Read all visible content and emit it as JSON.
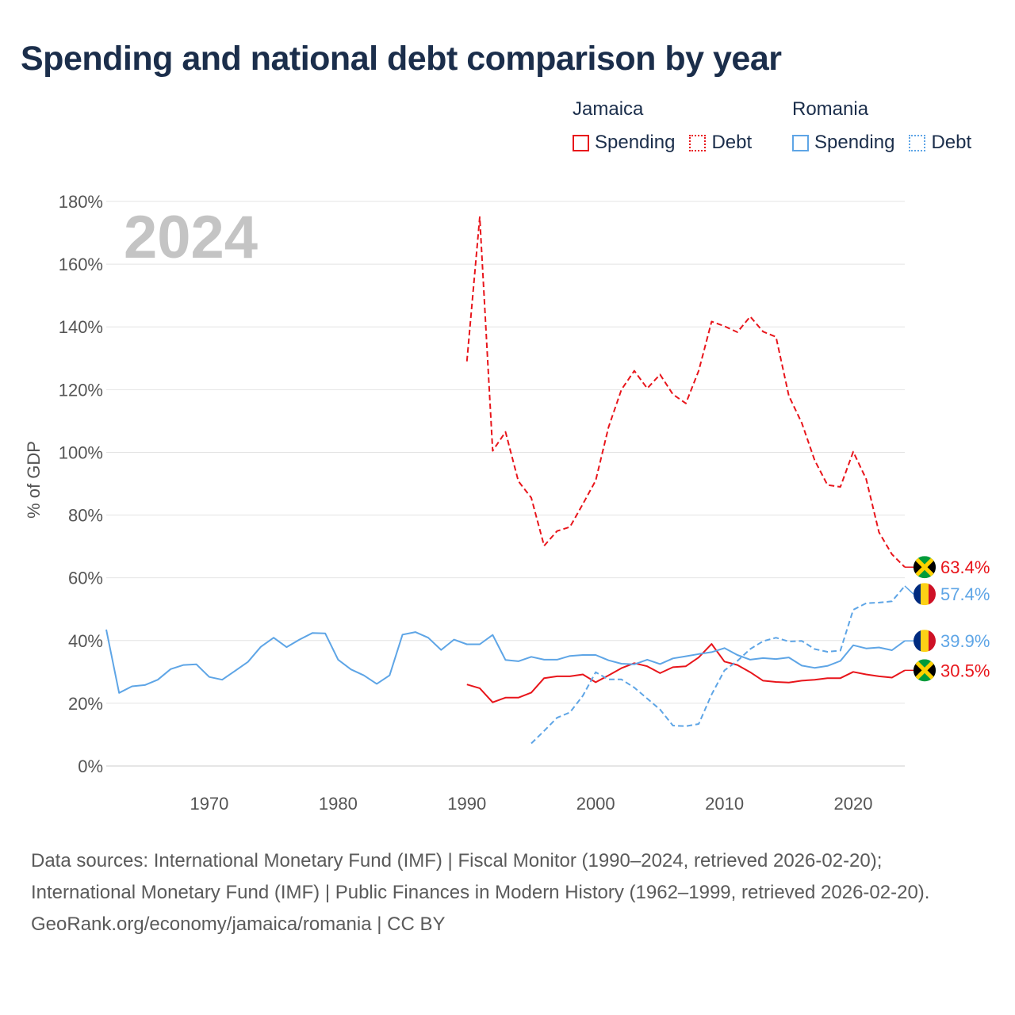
{
  "title": "Spending and national debt comparison by year",
  "colors": {
    "jamaica": "#e8151b",
    "romania": "#5ea5e6",
    "title": "#1b2e4b",
    "grid": "#e4e4e4"
  },
  "legend": {
    "groups": [
      {
        "name": "Jamaica",
        "color": "#e8151b",
        "items": [
          {
            "label": "Spending",
            "style": "solid"
          },
          {
            "label": "Debt",
            "style": "dotted"
          }
        ]
      },
      {
        "name": "Romania",
        "color": "#5ea5e6",
        "items": [
          {
            "label": "Spending",
            "style": "solid"
          },
          {
            "label": "Debt",
            "style": "dotted"
          }
        ]
      }
    ]
  },
  "chart_data": {
    "type": "line",
    "current_year_label": "2024",
    "ylabel": "% of GDP",
    "xlabel": "",
    "xlim": [
      1962,
      2024
    ],
    "ylim": [
      0,
      180
    ],
    "x_ticks": [
      1970,
      1980,
      1990,
      2000,
      2010,
      2020
    ],
    "y_ticks": [
      0,
      20,
      40,
      60,
      80,
      100,
      120,
      140,
      160,
      180
    ],
    "y_tick_labels": [
      "0%",
      "20%",
      "40%",
      "60%",
      "80%",
      "100%",
      "120%",
      "140%",
      "160%",
      "180%"
    ],
    "grid": true,
    "series": [
      {
        "name": "Jamaica Spending",
        "country": "Jamaica",
        "measure": "Spending",
        "style": "solid",
        "color": "#e8151b",
        "x": [
          1990,
          1991,
          1992,
          1993,
          1994,
          1995,
          1996,
          1997,
          1998,
          1999,
          2000,
          2001,
          2002,
          2003,
          2004,
          2005,
          2006,
          2007,
          2008,
          2009,
          2010,
          2011,
          2012,
          2013,
          2014,
          2015,
          2016,
          2017,
          2018,
          2019,
          2020,
          2021,
          2022,
          2023,
          2024
        ],
        "values": [
          26,
          24.8,
          20.3,
          21.8,
          21.8,
          23.4,
          28,
          28.6,
          28.6,
          29.2,
          26.7,
          28.9,
          31.2,
          32.8,
          31.8,
          29.6,
          31.5,
          31.8,
          34.6,
          38.9,
          33.3,
          32.2,
          29.9,
          27.2,
          26.8,
          26.6,
          27.2,
          27.5,
          28,
          28,
          30,
          29.2,
          28.6,
          28.2,
          30.5
        ],
        "end_label": "30.5%"
      },
      {
        "name": "Jamaica Debt",
        "country": "Jamaica",
        "measure": "Debt",
        "style": "dashed",
        "color": "#e8151b",
        "x": [
          1990,
          1991,
          1992,
          1993,
          1994,
          1995,
          1996,
          1997,
          1998,
          1999,
          2000,
          2001,
          2002,
          2003,
          2004,
          2005,
          2006,
          2007,
          2008,
          2009,
          2010,
          2011,
          2012,
          2013,
          2014,
          2015,
          2016,
          2017,
          2018,
          2019,
          2020,
          2021,
          2022,
          2023,
          2024
        ],
        "values": [
          129,
          175,
          100.5,
          106.5,
          90.8,
          85.5,
          70.2,
          74.9,
          76.2,
          83.5,
          91,
          108,
          120,
          126,
          120.4,
          124.8,
          118.5,
          115.6,
          126,
          141.7,
          140.2,
          138.3,
          143.3,
          138.5,
          136.8,
          118,
          109.4,
          97.5,
          89.6,
          89,
          100.2,
          91.5,
          74.5,
          67.5,
          63.4
        ],
        "end_label": "63.4%"
      },
      {
        "name": "Romania Spending",
        "country": "Romania",
        "measure": "Spending",
        "style": "solid",
        "color": "#5ea5e6",
        "x": [
          1962,
          1963,
          1964,
          1965,
          1966,
          1967,
          1968,
          1969,
          1970,
          1971,
          1972,
          1973,
          1974,
          1975,
          1976,
          1977,
          1978,
          1979,
          1980,
          1981,
          1982,
          1983,
          1984,
          1985,
          1986,
          1987,
          1988,
          1989,
          1990,
          1991,
          1992,
          1993,
          1994,
          1995,
          1996,
          1997,
          1998,
          1999,
          2000,
          2001,
          2002,
          2003,
          2004,
          2005,
          2006,
          2007,
          2008,
          2009,
          2010,
          2011,
          2012,
          2013,
          2014,
          2015,
          2016,
          2017,
          2018,
          2019,
          2020,
          2021,
          2022,
          2023,
          2024
        ],
        "values": [
          43.5,
          23.3,
          25.4,
          25.8,
          27.5,
          30.9,
          32.2,
          32.4,
          28.4,
          27.5,
          30.3,
          33.2,
          38,
          40.9,
          37.9,
          40.3,
          42.4,
          42.3,
          33.9,
          30.8,
          28.9,
          26.2,
          28.9,
          41.9,
          42.7,
          40.9,
          37,
          40.3,
          38.8,
          38.8,
          41.8,
          33.8,
          33.4,
          34.8,
          33.9,
          33.9,
          35.1,
          35.4,
          35.4,
          33.7,
          32.6,
          32.4,
          33.9,
          32.5,
          34.3,
          35,
          35.7,
          36.3,
          37.6,
          35.4,
          33.9,
          34.4,
          34.1,
          34.6,
          32,
          31.3,
          31.9,
          33.5,
          38.5,
          37.5,
          37.8,
          36.9,
          39.9
        ],
        "end_label": "39.9%"
      },
      {
        "name": "Romania Debt",
        "country": "Romania",
        "measure": "Debt",
        "style": "dashed",
        "color": "#5ea5e6",
        "x": [
          1995,
          1996,
          1997,
          1998,
          1999,
          2000,
          2001,
          2002,
          2003,
          2004,
          2005,
          2006,
          2007,
          2008,
          2009,
          2010,
          2011,
          2012,
          2013,
          2014,
          2015,
          2016,
          2017,
          2018,
          2019,
          2020,
          2021,
          2022,
          2023,
          2024
        ],
        "values": [
          7.2,
          11.2,
          15.4,
          17.1,
          22.4,
          29.9,
          27.6,
          27.6,
          25,
          21.5,
          18,
          12.9,
          12.7,
          13.4,
          22.8,
          30.5,
          33.5,
          37.3,
          39.8,
          40.9,
          39.7,
          39.9,
          37.3,
          36.4,
          36.8,
          49.8,
          51.9,
          52.1,
          52.5,
          57.4
        ],
        "end_label": "57.4%"
      }
    ]
  },
  "footer": {
    "sources": "Data sources: International Monetary Fund (IMF) | Fiscal Monitor (1990–2024, retrieved 2026-02-20); International Monetary Fund (IMF) | Public Finances in Modern History (1962–1999, retrieved 2026-02-20).",
    "credit": "GeoRank.org/economy/jamaica/romania | CC BY"
  }
}
